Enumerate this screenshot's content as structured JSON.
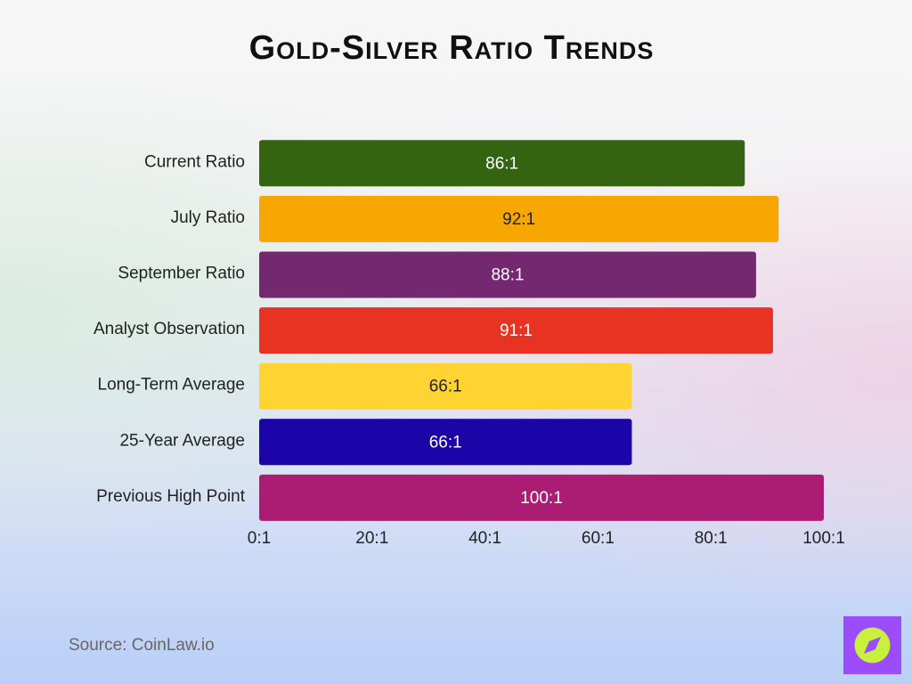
{
  "chart_data": {
    "type": "bar",
    "orientation": "horizontal",
    "title": "Gold-Silver Ratio Trends",
    "categories": [
      "Current Ratio",
      "July Ratio",
      "September Ratio",
      "Analyst Observation",
      "Long-Term Average",
      "25-Year Average",
      "Previous High Point"
    ],
    "values": [
      86,
      92,
      88,
      91,
      66,
      66,
      100
    ],
    "value_labels": [
      "86:1",
      "92:1",
      "88:1",
      "91:1",
      "66:1",
      "66:1",
      "100:1"
    ],
    "colors": [
      "#346312",
      "#f8a602",
      "#74286f",
      "#e83222",
      "#fed332",
      "#1c05a8",
      "#aa1d72"
    ],
    "xlim": [
      0,
      100
    ],
    "xticks": [
      {
        "value": 0,
        "label": "0:1"
      },
      {
        "value": 20,
        "label": "20:1"
      },
      {
        "value": 40,
        "label": "40:1"
      },
      {
        "value": 60,
        "label": "60:1"
      },
      {
        "value": 80,
        "label": "80:1"
      },
      {
        "value": 100,
        "label": "100:1"
      }
    ],
    "grid": false,
    "source": "Source: CoinLaw.io"
  }
}
